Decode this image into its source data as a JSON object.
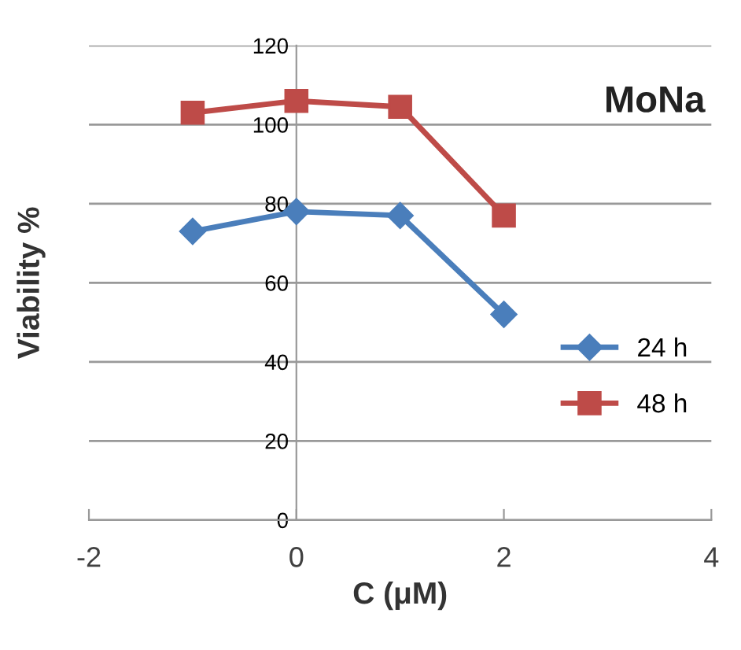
{
  "chart_data": {
    "type": "line",
    "xlabel": "C (μM)",
    "ylabel": "Viability %",
    "annotations": [
      "MoNa"
    ],
    "x": [
      -1,
      0,
      1,
      2
    ],
    "series": [
      {
        "name": "24 h",
        "color": "#4a7ebb",
        "values": [
          73,
          78,
          77,
          52
        ],
        "marker": "diamond"
      },
      {
        "name": "48 h",
        "color": "#be4b48",
        "values": [
          103,
          106,
          104.5,
          77
        ],
        "marker": "square"
      }
    ],
    "xlim": [
      -2,
      4
    ],
    "xticks": [
      -2,
      0,
      2,
      4
    ],
    "ylim": [
      0,
      120
    ],
    "yticks": [
      0,
      20,
      40,
      60,
      80,
      100,
      120
    ],
    "grid": "y",
    "legend": "center right",
    "line_style": "solid"
  }
}
